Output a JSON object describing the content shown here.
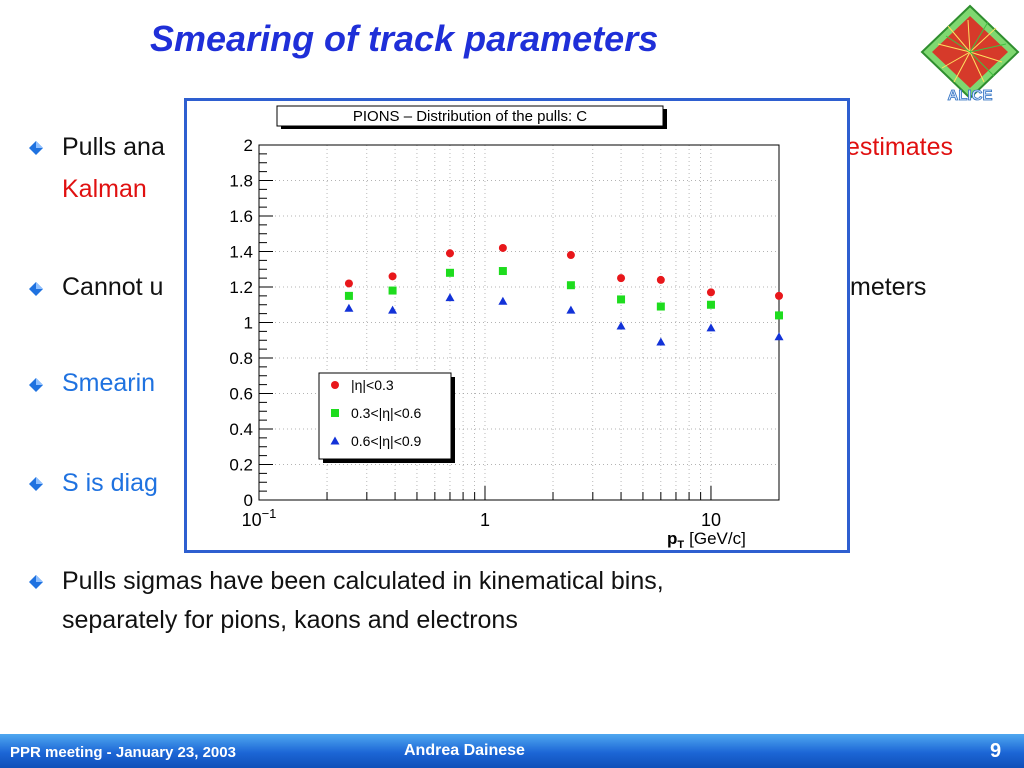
{
  "slide": {
    "title": "Smearing of track parameters",
    "logo_text": "ALICE"
  },
  "bullets": [
    {
      "segments": [
        {
          "text": "Pulls ana",
          "color": "default"
        }
      ]
    },
    {
      "segments": [
        {
          "text": "estimates",
          "color": "red"
        }
      ]
    },
    {
      "segments": [
        {
          "text": "Kalman",
          "color": "red"
        }
      ]
    },
    {
      "segments": [
        {
          "text": "Cannot u",
          "color": "default"
        }
      ]
    },
    {
      "segments": [
        {
          "text": "meters",
          "color": "default"
        }
      ]
    },
    {
      "segments": [
        {
          "text": "Smearin",
          "color": "blue"
        }
      ]
    },
    {
      "segments": [
        {
          "text": "S is diag",
          "color": "blue"
        }
      ]
    },
    {
      "segments": [
        {
          "text": "Pulls sigmas have been calculated in kinematical bins,",
          "color": "default"
        }
      ]
    },
    {
      "segments": [
        {
          "text": "separately for pions, kaons and electrons",
          "color": "default"
        }
      ]
    }
  ],
  "footer": {
    "meeting": "PPR meeting - January 23, 2003",
    "author": "Andrea Dainese",
    "page": "9"
  },
  "colors": {
    "title": "#1f2fd8",
    "accent_red": "#e01010",
    "accent_blue": "#1f72e0",
    "frame": "#2e5fd0",
    "series_red": "#e8171b",
    "series_green": "#1edc1e",
    "series_blue": "#1232d8"
  },
  "chart_data": {
    "type": "scatter",
    "title": "PIONS – Distribution of the pulls: C",
    "xlabel_main": "p",
    "xlabel_sub": "T",
    "xlabel_unit": "[GeV/c]",
    "ylabel": "",
    "xscale": "log",
    "xlim": [
      0.1,
      20
    ],
    "ylim": [
      0,
      2
    ],
    "grid": true,
    "legend_position": "lower-left",
    "x_ticks": [
      {
        "value": 0.1,
        "base": "10",
        "exp": "−1"
      },
      {
        "value": 1,
        "base": "1",
        "exp": ""
      },
      {
        "value": 10,
        "base": "10",
        "exp": ""
      }
    ],
    "y_ticks": [
      "0",
      "0.2",
      "0.4",
      "0.6",
      "0.8",
      "1",
      "1.2",
      "1.4",
      "1.6",
      "1.8",
      "2"
    ],
    "x": [
      0.25,
      0.39,
      0.7,
      1.2,
      2.4,
      4,
      6,
      10,
      20
    ],
    "series": [
      {
        "name": "|η|<0.3",
        "marker": "circle",
        "color": "#e8171b",
        "values": [
          1.22,
          1.26,
          1.39,
          1.42,
          1.38,
          1.25,
          1.24,
          1.17,
          1.15
        ]
      },
      {
        "name": "0.3<|η|<0.6",
        "marker": "square",
        "color": "#1edc1e",
        "values": [
          1.15,
          1.18,
          1.28,
          1.29,
          1.21,
          1.13,
          1.09,
          1.1,
          1.04
        ]
      },
      {
        "name": "0.6<|η|<0.9",
        "marker": "triangle",
        "color": "#1232d8",
        "values": [
          1.08,
          1.07,
          1.14,
          1.12,
          1.07,
          0.98,
          0.89,
          0.97,
          0.92
        ]
      }
    ]
  }
}
